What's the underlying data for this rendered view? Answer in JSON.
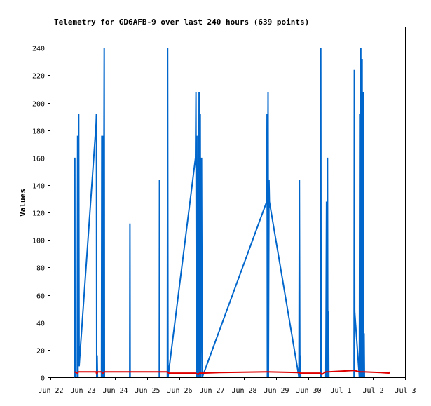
{
  "chart_data": {
    "type": "line",
    "title": "Telemetry for GD6AFB-9 over last 240 hours (639 points)",
    "xlabel": "",
    "ylabel": "Values",
    "xlim": [
      "2025-06-22T00:00",
      "2025-07-03T00:00"
    ],
    "ylim": [
      0,
      255
    ],
    "grid": false,
    "legend": "none",
    "colors": {
      "blue_series": "#0066cc",
      "red_series": "#e00000",
      "black_series": "#000000"
    },
    "x_tick_labels": [
      "Jun 22",
      "Jun 23",
      "Jun 24",
      "Jun 25",
      "Jun 26",
      "Jun 27",
      "Jun 28",
      "Jun 29",
      "Jun 30",
      "Jul 1",
      "Jul 2",
      "Jul 3"
    ],
    "y_tick_labels": [
      "0",
      "20",
      "40",
      "60",
      "80",
      "100",
      "120",
      "140",
      "160",
      "180",
      "200",
      "220",
      "240"
    ],
    "y_ticks": [
      0,
      20,
      40,
      60,
      80,
      100,
      120,
      140,
      160,
      180,
      200,
      220,
      240
    ],
    "series": [
      {
        "color": "#0066cc",
        "points": [
          [
            "2025-06-22T18:00",
            0
          ],
          [
            "2025-06-22T18:10",
            160
          ],
          [
            "2025-06-22T18:20",
            0
          ],
          [
            "2025-06-22T20:00",
            0
          ],
          [
            "2025-06-22T20:15",
            176
          ],
          [
            "2025-06-22T20:30",
            0
          ],
          [
            "2025-06-22T21:00",
            192
          ],
          [
            "2025-06-22T21:20",
            8
          ],
          [
            "2025-06-23T10:00",
            185
          ],
          [
            "2025-06-23T10:15",
            192
          ],
          [
            "2025-06-23T10:25",
            0
          ],
          [
            "2025-06-23T10:45",
            16
          ],
          [
            "2025-06-23T11:00",
            0
          ],
          [
            "2025-06-23T14:00",
            0
          ],
          [
            "2025-06-23T14:15",
            176
          ],
          [
            "2025-06-23T14:30",
            0
          ],
          [
            "2025-06-23T15:00",
            176
          ],
          [
            "2025-06-23T15:20",
            0
          ],
          [
            "2025-06-23T16:00",
            240
          ],
          [
            "2025-06-23T16:10",
            0
          ],
          [
            "2025-06-24T11:00",
            0
          ],
          [
            "2025-06-24T11:10",
            112
          ],
          [
            "2025-06-24T11:20",
            0
          ],
          [
            "2025-06-25T09:00",
            0
          ],
          [
            "2025-06-25T09:10",
            144
          ],
          [
            "2025-06-25T09:20",
            0
          ],
          [
            "2025-06-25T15:00",
            0
          ],
          [
            "2025-06-25T15:15",
            240
          ],
          [
            "2025-06-25T15:30",
            0
          ],
          [
            "2025-06-26T12:00",
            160
          ],
          [
            "2025-06-26T12:20",
            208
          ],
          [
            "2025-06-26T12:40",
            0
          ],
          [
            "2025-06-26T13:00",
            176
          ],
          [
            "2025-06-26T13:20",
            0
          ],
          [
            "2025-06-26T14:00",
            128
          ],
          [
            "2025-06-26T14:15",
            0
          ],
          [
            "2025-06-26T14:40",
            208
          ],
          [
            "2025-06-26T15:00",
            0
          ],
          [
            "2025-06-26T15:30",
            192
          ],
          [
            "2025-06-26T15:50",
            0
          ],
          [
            "2025-06-26T16:30",
            160
          ],
          [
            "2025-06-26T17:00",
            0
          ],
          [
            "2025-06-28T17:00",
            128
          ],
          [
            "2025-06-28T17:15",
            192
          ],
          [
            "2025-06-28T17:30",
            0
          ],
          [
            "2025-06-28T18:00",
            208
          ],
          [
            "2025-06-28T18:15",
            0
          ],
          [
            "2025-06-28T18:40",
            144
          ],
          [
            "2025-06-28T19:00",
            128
          ],
          [
            "2025-06-29T17:00",
            0
          ],
          [
            "2025-06-29T17:20",
            144
          ],
          [
            "2025-06-29T17:40",
            0
          ],
          [
            "2025-06-29T18:00",
            16
          ],
          [
            "2025-06-29T18:20",
            0
          ],
          [
            "2025-06-30T09:00",
            0
          ],
          [
            "2025-06-30T09:15",
            240
          ],
          [
            "2025-06-30T09:30",
            0
          ],
          [
            "2025-06-30T13:00",
            0
          ],
          [
            "2025-06-30T13:15",
            64
          ],
          [
            "2025-06-30T13:30",
            128
          ],
          [
            "2025-06-30T13:45",
            0
          ],
          [
            "2025-06-30T14:15",
            160
          ],
          [
            "2025-06-30T14:30",
            0
          ],
          [
            "2025-06-30T15:00",
            48
          ],
          [
            "2025-06-30T15:15",
            0
          ],
          [
            "2025-07-01T10:00",
            0
          ],
          [
            "2025-07-01T10:15",
            224
          ],
          [
            "2025-07-01T10:30",
            48
          ],
          [
            "2025-07-01T14:00",
            0
          ],
          [
            "2025-07-01T14:15",
            192
          ],
          [
            "2025-07-01T14:30",
            0
          ],
          [
            "2025-07-01T15:00",
            240
          ],
          [
            "2025-07-01T15:15",
            0
          ],
          [
            "2025-07-01T16:00",
            232
          ],
          [
            "2025-07-01T16:15",
            0
          ],
          [
            "2025-07-01T16:45",
            208
          ],
          [
            "2025-07-01T17:00",
            0
          ],
          [
            "2025-07-01T17:30",
            32
          ],
          [
            "2025-07-01T17:45",
            0
          ]
        ]
      },
      {
        "color": "#e00000",
        "points": [
          [
            "2025-06-22T18:00",
            4
          ],
          [
            "2025-06-22T20:00",
            3
          ],
          [
            "2025-06-22T21:00",
            4
          ],
          [
            "2025-06-23T10:00",
            4
          ],
          [
            "2025-06-23T10:30",
            2
          ],
          [
            "2025-06-23T11:00",
            4
          ],
          [
            "2025-06-23T14:00",
            4
          ],
          [
            "2025-06-23T15:00",
            3
          ],
          [
            "2025-06-23T16:00",
            4
          ],
          [
            "2025-06-24T11:00",
            4
          ],
          [
            "2025-06-25T09:00",
            4
          ],
          [
            "2025-06-25T15:00",
            4
          ],
          [
            "2025-06-25T16:00",
            3
          ],
          [
            "2025-06-26T12:00",
            3
          ],
          [
            "2025-06-26T14:00",
            2
          ],
          [
            "2025-06-26T15:00",
            3
          ],
          [
            "2025-06-26T17:00",
            3
          ],
          [
            "2025-06-27T06:00",
            3.5
          ],
          [
            "2025-06-28T17:00",
            4
          ],
          [
            "2025-06-29T17:00",
            3.5
          ],
          [
            "2025-06-29T18:00",
            3
          ],
          [
            "2025-06-30T09:00",
            3
          ],
          [
            "2025-06-30T10:00",
            2
          ],
          [
            "2025-06-30T13:00",
            4
          ],
          [
            "2025-06-30T15:00",
            4
          ],
          [
            "2025-07-01T10:00",
            5
          ],
          [
            "2025-07-01T14:00",
            4
          ],
          [
            "2025-07-01T17:00",
            4
          ],
          [
            "2025-07-02T06:00",
            3.5
          ],
          [
            "2025-07-02T12:00",
            3
          ],
          [
            "2025-07-02T12:30",
            4
          ]
        ]
      },
      {
        "color": "#000000",
        "points": [
          [
            "2025-06-22T18:00",
            0
          ],
          [
            "2025-07-02T12:30",
            0
          ]
        ]
      }
    ]
  }
}
